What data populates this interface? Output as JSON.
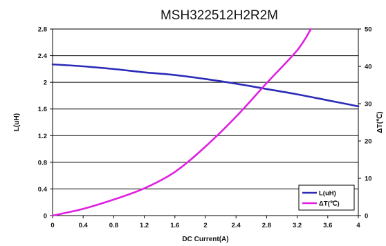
{
  "chart_data": {
    "type": "line",
    "title": "MSH322512H2R2M",
    "xlabel": "DC Current(A)",
    "ylabel": "L(uH)",
    "y2label": "ΔT(℃)",
    "xlim": [
      0,
      4
    ],
    "ylim": [
      0,
      2.8
    ],
    "y2lim": [
      0,
      50
    ],
    "x_ticks": [
      "0",
      "0.4",
      "0.8",
      "1.2",
      "1.6",
      "2",
      "2.4",
      "2.8",
      "3.2",
      "3.6",
      "4"
    ],
    "y_ticks": [
      "0",
      "0.4",
      "0.8",
      "1.2",
      "1.6",
      "2",
      "2.4",
      "2.8"
    ],
    "y2_ticks": [
      "0",
      "10",
      "20",
      "30",
      "40",
      "50"
    ],
    "grid": "horizontal",
    "legend_position": "bottom-right",
    "series": [
      {
        "name": "L(uH)",
        "axis": "left",
        "color": "#2b2bb8",
        "x": [
          0,
          0.4,
          0.8,
          1.2,
          1.6,
          2.0,
          2.4,
          2.8,
          3.2,
          3.6,
          4.0
        ],
        "y": [
          2.27,
          2.24,
          2.2,
          2.15,
          2.11,
          2.05,
          1.98,
          1.9,
          1.82,
          1.73,
          1.64
        ]
      },
      {
        "name": "ΔT(℃)",
        "axis": "right",
        "color": "#e020e0",
        "x": [
          0,
          0.4,
          0.8,
          1.2,
          1.6,
          2.0,
          2.4,
          2.8,
          3.2,
          3.38
        ],
        "y": [
          0,
          1.8,
          4.3,
          7.3,
          11.7,
          18.5,
          26.5,
          35.5,
          44.3,
          50
        ]
      }
    ]
  }
}
